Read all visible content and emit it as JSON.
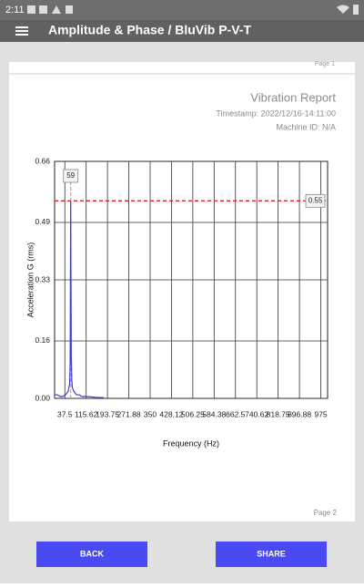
{
  "status_bar": {
    "time": "2:11"
  },
  "app_bar": {
    "title": "Amplitude & Phase / BluVib P-V-T"
  },
  "report": {
    "title": "Vibration Report",
    "timestamp": "Timestamp: 2022/12/16-14:11:00",
    "machine": "Machine ID: N/A",
    "prev_page": "Page 1",
    "page": "Page 2"
  },
  "chart_data": {
    "type": "line",
    "x_label": "Frequency (Hz)",
    "y_label": "Acceleration G (rms)",
    "x": [
      0,
      10,
      20,
      30,
      40,
      50,
      55,
      57,
      59,
      61,
      63,
      65,
      70,
      80,
      90,
      100,
      110,
      120,
      150,
      180
    ],
    "series": [
      {
        "color": "#3b3bd6",
        "values": [
          0.01,
          0.01,
          0.005,
          0.005,
          0.01,
          0.02,
          0.04,
          0.1,
          0.55,
          0.12,
          0.05,
          0.03,
          0.02,
          0.01,
          0.01,
          0.005,
          0.005,
          0.005,
          0.003,
          0.002
        ]
      }
    ],
    "xlim": [
      0,
      1000
    ],
    "xticks": [
      37.5,
      115.62,
      193.75,
      271.88,
      350,
      428.12,
      506.25,
      584.38,
      662.5,
      740.62,
      818.75,
      896.88,
      975
    ],
    "ylim": [
      0,
      0.66
    ],
    "yticks": [
      {
        "value": 0,
        "label": "0.00"
      },
      0.16,
      0.33,
      0.49,
      0.66
    ],
    "grid": true,
    "threshold": 0.55,
    "threshold_color": "#e02020",
    "cursor": 59,
    "cursor_color": "#f08a8a"
  },
  "buttons": [
    "BACK",
    "SHARE"
  ]
}
